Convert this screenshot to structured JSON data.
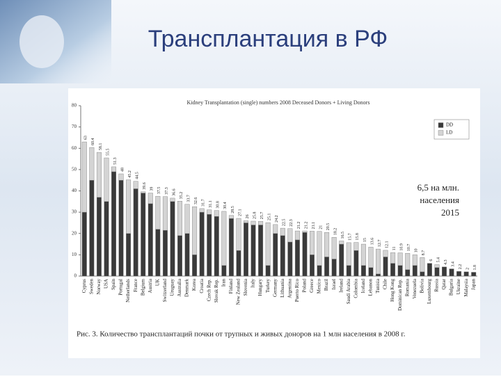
{
  "slide_title": "Трансплантация в РФ",
  "annotation": [
    "6,5 на млн.",
    "населения",
    "2015"
  ],
  "caption": "Рис. 3. Количество трансплантаций почки от трупных и живых доноров на 1 млн населения в 2008 г.",
  "chart_data": {
    "type": "stacked_bar",
    "title": "Kidney Transplantation (single) numbers 2008 Deceased Donors + Living Donors",
    "categories": [
      "Cyprus",
      "Sweden",
      "Norway",
      "USA",
      "Spain",
      "Portugal",
      "Netherlands",
      "France",
      "Belgium",
      "Austria",
      "UK",
      "Switzerland",
      "Uruguay",
      "Australia",
      "Denmark",
      "Korea",
      "Croatia",
      "Czech Rep.",
      "Slovak Rep.",
      "Iran",
      "Finland",
      "New Zealand",
      "Slovenia",
      "Italy",
      "Hungary",
      "Turkey",
      "Germany",
      "Lithuania",
      "Argentina",
      "Puerto Rico",
      "Poland",
      "Greece",
      "Mexico",
      "Brazil",
      "Israel",
      "Ireland",
      "Saudi Arabia",
      "Colombia",
      "Iceland",
      "Lebanon",
      "Tunisia",
      "Chile",
      "Hong Kong",
      "Dominican Rep.",
      "Romania",
      "Venezuela",
      "Bolivia",
      "Luxembourg",
      "Russia",
      "Qatar",
      "Bulgaria",
      "Ukraine",
      "Malaysia",
      "Japan"
    ],
    "series": [
      {
        "name": "DD",
        "color": "#3a3a3a",
        "values": [
          30,
          45,
          37,
          35,
          49,
          45,
          20,
          41,
          39,
          34,
          22,
          21.5,
          35,
          19,
          20,
          10,
          30,
          29,
          28,
          5,
          27,
          12,
          25,
          24,
          24,
          5,
          20,
          19,
          16,
          17,
          20.5,
          10,
          5,
          9,
          8,
          15,
          5,
          12,
          5,
          4,
          1,
          9,
          6,
          5,
          3,
          5,
          2,
          6,
          4,
          4.3,
          3.4,
          2.2,
          2,
          1.8
        ]
      },
      {
        "name": "LD",
        "color": "#d4d4d4",
        "values": [
          33,
          15.4,
          21.1,
          20.5,
          2.3,
          3,
          25.2,
          3.5,
          0.6,
          5,
          15.5,
          15.8,
          1.6,
          16.2,
          13.7,
          22.6,
          1.7,
          2.1,
          2.8,
          25.4,
          1.5,
          15.1,
          1,
          1.8,
          1.7,
          20.1,
          4.2,
          3.5,
          6.3,
          4.2,
          0.7,
          11.1,
          16,
          11.5,
          10.2,
          1.5,
          10.7,
          3.8,
          10,
          9.6,
          11.7,
          3.1,
          5,
          5.9,
          7.7,
          5,
          6.7,
          0,
          1.4,
          0,
          0,
          0,
          0,
          0
        ]
      }
    ],
    "totals": [
      63,
      60.4,
      58.1,
      55.5,
      51.3,
      48,
      45.2,
      44.5,
      39.6,
      39,
      37.5,
      37.3,
      36.6,
      35.2,
      33.7,
      32.6,
      31.7,
      31.1,
      30.8,
      30.4,
      28.5,
      27.1,
      26,
      25.8,
      25.7,
      25.1,
      24.2,
      22.5,
      22.3,
      21.2,
      21.2,
      21.1,
      21,
      20.5,
      18.2,
      16.5,
      15.7,
      15.8,
      15,
      13.6,
      12.7,
      12.1,
      11,
      10.9,
      10.7,
      10,
      8.7,
      6,
      5.4,
      4.3,
      3.4,
      2.2,
      2,
      1.8
    ],
    "ylim": [
      0,
      80
    ],
    "yticks": [
      0,
      10,
      20,
      30,
      40,
      50,
      60,
      70,
      80
    ],
    "legend": "top-right"
  }
}
